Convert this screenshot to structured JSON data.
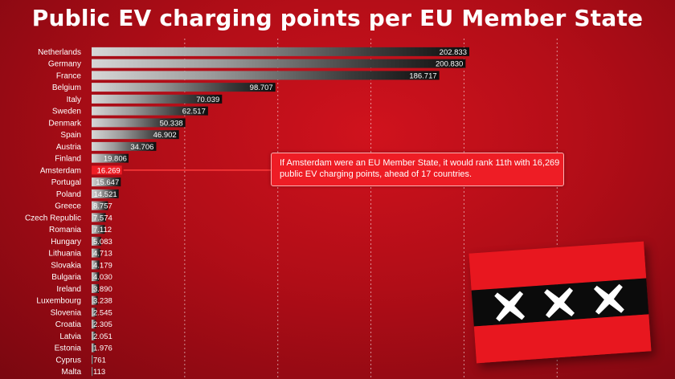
{
  "title": "Public EV charging points per EU Member State",
  "chart_data": {
    "type": "bar",
    "orientation": "horizontal",
    "title": "Public EV charging points per EU Member State",
    "xlabel": "",
    "ylabel": "",
    "xlim": [
      0,
      250000
    ],
    "grid": true,
    "categories": [
      "Netherlands",
      "Germany",
      "France",
      "Belgium",
      "Italy",
      "Sweden",
      "Denmark",
      "Spain",
      "Austria",
      "Finland",
      "Amsterdam",
      "Portugal",
      "Poland",
      "Greece",
      "Czech Republic",
      "Romania",
      "Hungary",
      "Lithuania",
      "Slovakia",
      "Bulgaria",
      "Ireland",
      "Luxembourg",
      "Slovenia",
      "Croatia",
      "Latvia",
      "Estonia",
      "Cyprus",
      "Malta"
    ],
    "values": [
      202833,
      200830,
      186717,
      98707,
      70039,
      62517,
      50338,
      46902,
      34706,
      19806,
      16269,
      15647,
      14521,
      8757,
      7574,
      7112,
      5083,
      4713,
      4179,
      4030,
      3890,
      3238,
      2545,
      2305,
      2051,
      1976,
      761,
      113
    ],
    "value_labels": [
      "202.833",
      "200.830",
      "186.717",
      "98.707",
      "70.039",
      "62.517",
      "50.338",
      "46.902",
      "34.706",
      "19.806",
      "16.269",
      "15.647",
      "14.521",
      "8.757",
      "7.574",
      "7.112",
      "5.083",
      "4.713",
      "4.179",
      "4.030",
      "3.890",
      "3.238",
      "2.545",
      "2.305",
      "2.051",
      "1.976",
      "761",
      "113"
    ],
    "highlight": "Amsterdam",
    "annotation": "If Amsterdam were an EU Member State, it would rank 11th with 16,269 public EV charging points, ahead of 17 countries."
  },
  "colors": {
    "background": "#c0101a",
    "highlight_bar": "#ee1d25",
    "bar_start": "#cfcfcf",
    "bar_end": "#0d0d0d",
    "flag_red": "#e8171f",
    "flag_black": "#0b0b0b"
  },
  "flag": {
    "icon": "amsterdam-flag-icon"
  }
}
